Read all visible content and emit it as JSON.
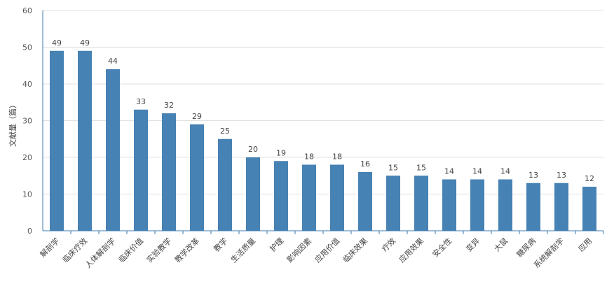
{
  "chart_data": {
    "type": "bar",
    "title": "",
    "xlabel": "",
    "ylabel": "文献量（篇）",
    "ylim": [
      0,
      60
    ],
    "yticks": [
      0,
      10,
      20,
      30,
      40,
      50,
      60
    ],
    "grid": true,
    "legend": "none",
    "bar_color": "#4682b4",
    "categories": [
      "解剖学",
      "临床疗效",
      "人体解剖学",
      "临床价值",
      "实验教学",
      "教学改革",
      "教学",
      "生活质量",
      "护理",
      "影响因素",
      "应用价值",
      "临床效果",
      "疗效",
      "应用效果",
      "安全性",
      "变异",
      "大鼠",
      "糖尿病",
      "系统解剖学",
      "应用"
    ],
    "values": [
      49,
      49,
      44,
      33,
      32,
      29,
      25,
      20,
      19,
      18,
      18,
      16,
      15,
      15,
      14,
      14,
      14,
      13,
      13,
      12
    ]
  }
}
